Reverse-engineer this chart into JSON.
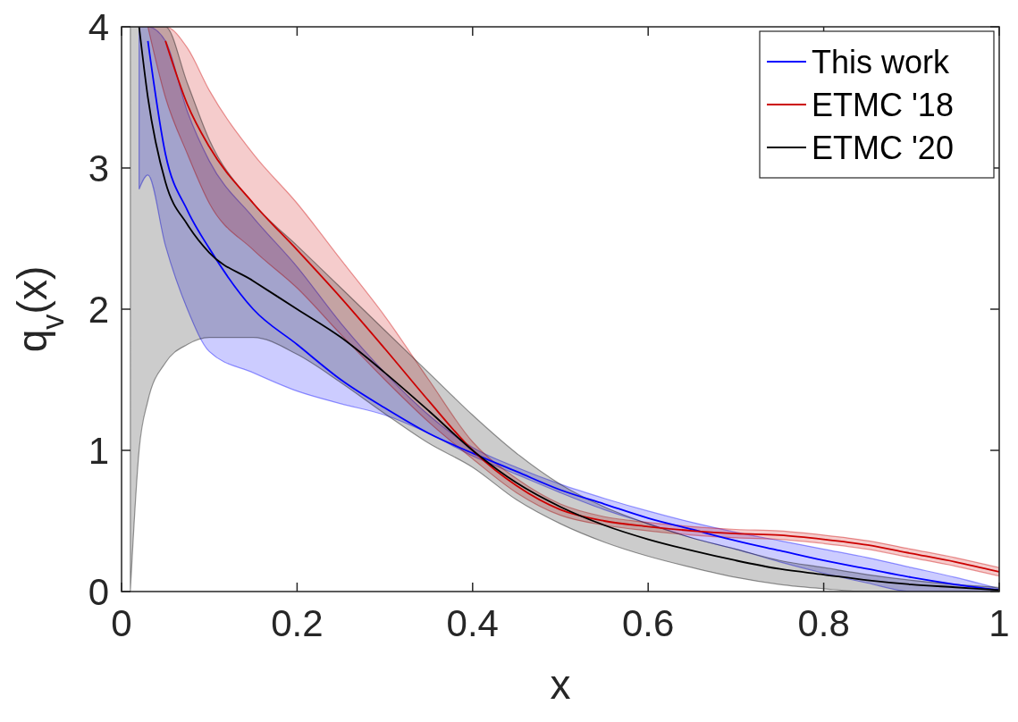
{
  "chart_data": {
    "type": "line",
    "xlabel": "x",
    "ylabel": "q$_{v}$(x)",
    "xlim": [
      0,
      1
    ],
    "ylim": [
      0,
      4
    ],
    "xticks": [
      0,
      0.2,
      0.4,
      0.6,
      0.8,
      1
    ],
    "yticks": [
      0,
      1,
      2,
      3,
      4
    ],
    "legend": "top right",
    "grid": false,
    "x": [
      0.01,
      0.02,
      0.03,
      0.05,
      0.075,
      0.1,
      0.15,
      0.2,
      0.25,
      0.3,
      0.35,
      0.4,
      0.45,
      0.5,
      0.55,
      0.6,
      0.65,
      0.7,
      0.75,
      0.8,
      0.85,
      0.9,
      0.95,
      1
    ],
    "series": [
      {
        "name": "This work",
        "color": "#0000ff",
        "values": [
          null,
          null,
          3.9,
          3.1,
          2.7,
          2.43,
          2.0,
          1.75,
          1.5,
          1.3,
          1.12,
          0.98,
          0.85,
          0.72,
          0.62,
          0.52,
          0.44,
          0.36,
          0.29,
          0.22,
          0.16,
          0.1,
          0.05,
          0.01
        ],
        "lower": [
          null,
          2.85,
          2.95,
          2.45,
          2.0,
          1.7,
          1.55,
          1.42,
          1.33,
          1.25,
          1.12,
          0.96,
          0.83,
          0.7,
          0.58,
          0.48,
          0.38,
          0.3,
          0.21,
          0.13,
          0.06,
          0,
          0,
          0
        ],
        "upper": [
          null,
          4,
          4,
          3.9,
          3.4,
          3.05,
          2.65,
          2.3,
          1.9,
          1.55,
          1.25,
          1.02,
          0.88,
          0.76,
          0.66,
          0.57,
          0.49,
          0.42,
          0.36,
          0.3,
          0.24,
          0.17,
          0.1,
          0.02
        ]
      },
      {
        "name": "ETMC '18",
        "color": "#cc0000",
        "values": [
          null,
          null,
          null,
          3.9,
          3.45,
          3.15,
          2.75,
          2.42,
          2.08,
          1.72,
          1.35,
          1.0,
          0.75,
          0.58,
          0.5,
          0.46,
          0.43,
          0.41,
          0.4,
          0.37,
          0.33,
          0.27,
          0.21,
          0.14
        ],
        "lower": [
          null,
          null,
          4,
          3.5,
          3.1,
          2.75,
          2.42,
          2.15,
          1.82,
          1.5,
          1.2,
          0.94,
          0.7,
          0.54,
          0.47,
          0.43,
          0.4,
          0.38,
          0.37,
          0.34,
          0.3,
          0.24,
          0.18,
          0.11
        ],
        "upper": [
          null,
          null,
          4,
          4,
          3.85,
          3.55,
          3.1,
          2.75,
          2.35,
          1.95,
          1.5,
          1.06,
          0.8,
          0.62,
          0.53,
          0.49,
          0.46,
          0.44,
          0.43,
          0.4,
          0.36,
          0.3,
          0.24,
          0.17
        ]
      },
      {
        "name": "ETMC '20",
        "color": "#000000",
        "values": [
          null,
          4,
          3.5,
          2.9,
          2.6,
          2.4,
          2.2,
          2.0,
          1.8,
          1.55,
          1.28,
          1.0,
          0.77,
          0.6,
          0.47,
          0.37,
          0.29,
          0.22,
          0.16,
          0.12,
          0.08,
          0.05,
          0.03,
          0.01
        ],
        "lower": [
          0,
          1.0,
          1.35,
          1.62,
          1.75,
          1.8,
          1.8,
          1.68,
          1.48,
          1.26,
          1.05,
          0.88,
          0.65,
          0.48,
          0.35,
          0.25,
          0.17,
          0.1,
          0.05,
          0.02,
          0,
          0,
          0,
          0
        ],
        "upper": [
          4,
          4,
          4,
          4,
          3.6,
          3.2,
          2.75,
          2.45,
          2.15,
          1.85,
          1.55,
          1.25,
          0.98,
          0.76,
          0.6,
          0.48,
          0.38,
          0.3,
          0.22,
          0.17,
          0.12,
          0.08,
          0.05,
          0.03
        ]
      }
    ]
  }
}
